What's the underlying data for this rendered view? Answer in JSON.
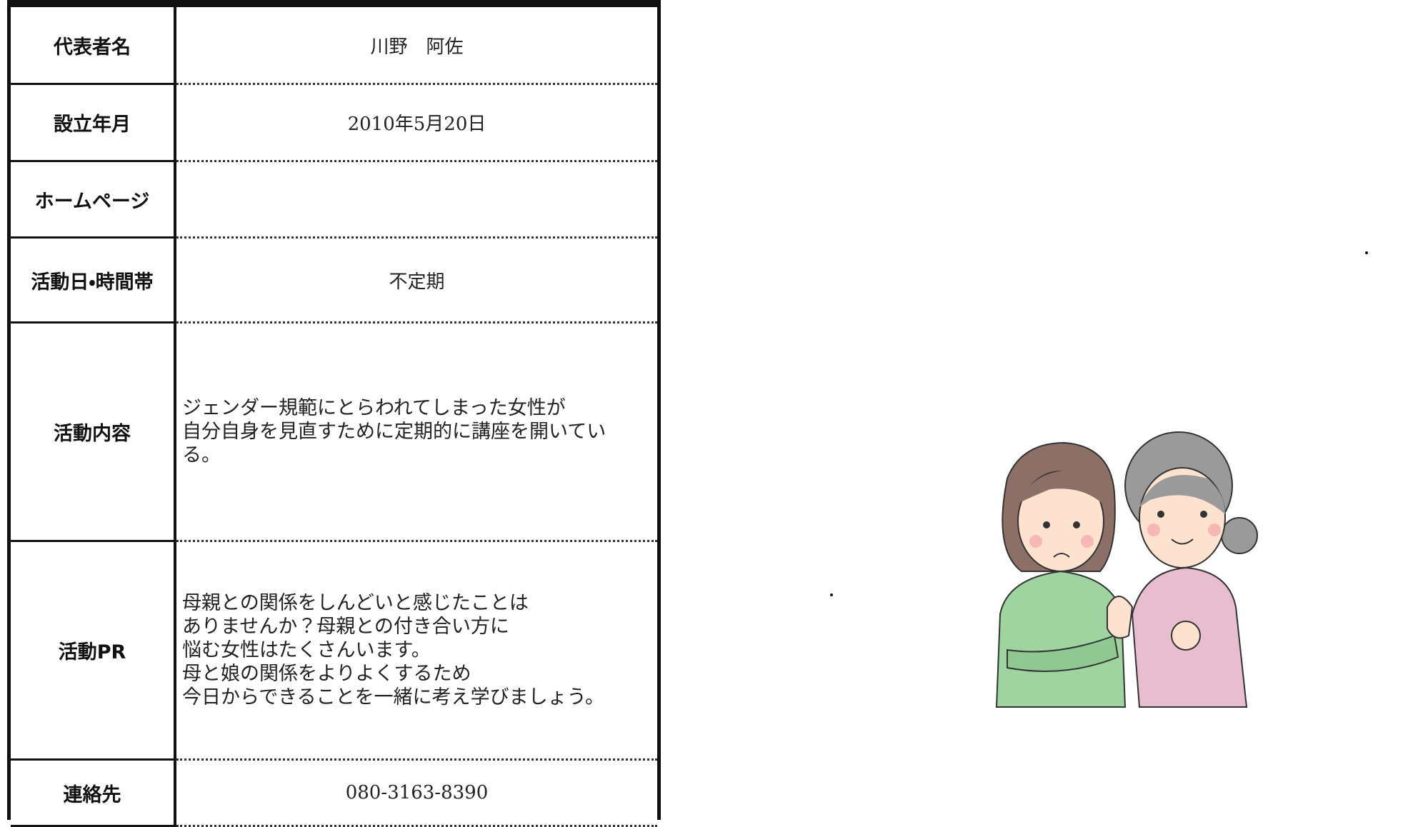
{
  "table": {
    "rows": [
      {
        "label": "代表者名",
        "value": "川野　阿佐"
      },
      {
        "label": "設立年月",
        "value": "2010年5月20日"
      },
      {
        "label": "ホームページ"
      },
      {
        "label": "活動日・時間帯",
        "value": "不定期"
      },
      {
        "label": "活動内容",
        "lines": [
          "ジェンダー規範にとらわれてしまった女性が",
          "自分自身を見直すために定期的に講座を開いてい",
          "る。"
        ]
      },
      {
        "label": "活動PR",
        "lines": [
          "母親との関係をしんどいと感じたことは",
          "ありませんか？母親との付き合い方に",
          "悩む女性はたくさんいます。",
          "母と娘の関係をよりよくするため",
          "今日からできることを一緒に考え学びましょう。"
        ]
      },
      {
        "label": "連絡先",
        "value": "080-3163-8390"
      }
    ]
  }
}
